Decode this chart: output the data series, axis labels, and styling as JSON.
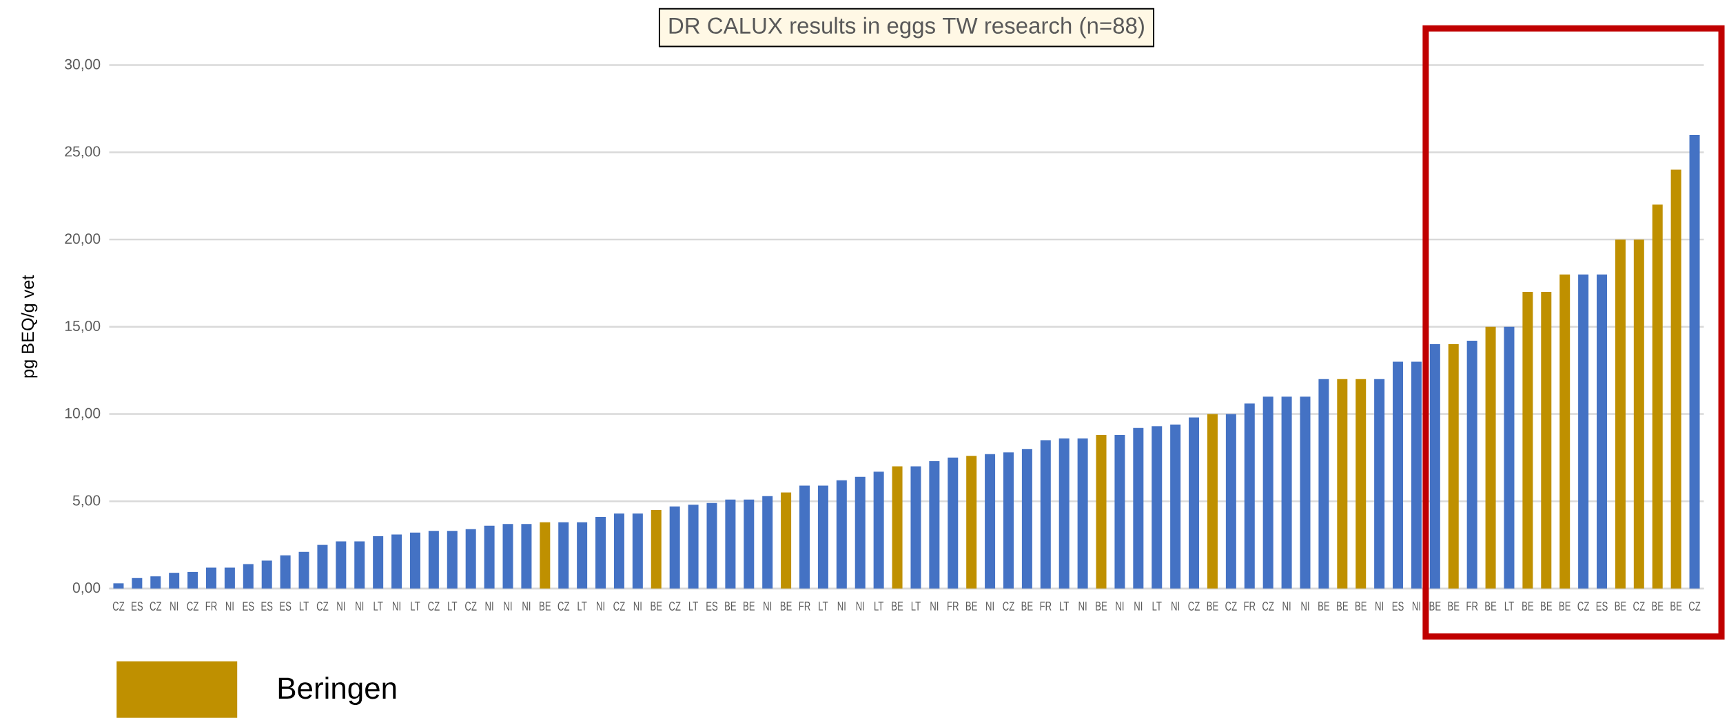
{
  "chart_data": {
    "type": "bar",
    "title": "DR CALUX results in eggs TW research (n=88)",
    "ylabel": "pg BEQ/g vet",
    "categories": [
      "CZ",
      "ES",
      "CZ",
      "NI",
      "CZ",
      "FR",
      "NI",
      "ES",
      "ES",
      "ES",
      "LT",
      "CZ",
      "NI",
      "NI",
      "LT",
      "NI",
      "LT",
      "CZ",
      "LT",
      "CZ",
      "NI",
      "NI",
      "NI",
      "BE",
      "CZ",
      "LT",
      "NI",
      "CZ",
      "NI",
      "BE",
      "CZ",
      "LT",
      "ES",
      "BE",
      "BE",
      "NI",
      "BE",
      "FR",
      "LT",
      "NI",
      "NI",
      "LT",
      "BE",
      "LT",
      "NI",
      "FR",
      "BE",
      "NI",
      "CZ",
      "BE",
      "FR",
      "LT",
      "NI",
      "BE",
      "NI",
      "NI",
      "LT",
      "NI",
      "CZ",
      "BE",
      "CZ",
      "FR",
      "CZ",
      "NI",
      "NI",
      "BE",
      "BE",
      "BE",
      "NI",
      "ES",
      "NI",
      "BE",
      "BE",
      "FR",
      "BE",
      "LT",
      "BE",
      "BE",
      "BE",
      "CZ",
      "ES",
      "BE",
      "CZ",
      "BE",
      "BE",
      "CZ"
    ],
    "series": [
      {
        "color": "#4472c4",
        "values": [
          0.3,
          0.6,
          0.7,
          0.9,
          0.95,
          1.2,
          1.2,
          1.4,
          1.6,
          1.9,
          2.1,
          2.5,
          2.7,
          2.7,
          3.0,
          3.1,
          3.2,
          3.3,
          3.3,
          3.4,
          3.6,
          3.7,
          3.7,
          null,
          3.8,
          3.8,
          4.1,
          4.3,
          4.3,
          null,
          4.7,
          4.8,
          4.9,
          5.1,
          5.1,
          5.3,
          null,
          5.9,
          5.9,
          6.2,
          6.4,
          6.7,
          null,
          7.0,
          7.3,
          7.5,
          null,
          7.7,
          7.8,
          8.0,
          8.5,
          8.6,
          8.6,
          null,
          8.8,
          9.2,
          9.3,
          9.4,
          9.8,
          null,
          10,
          10.6,
          11,
          11,
          11,
          12,
          null,
          null,
          12,
          13,
          13,
          14,
          null,
          14.2,
          null,
          15,
          null,
          null,
          null,
          18,
          18,
          null,
          null,
          null,
          null,
          26
        ]
      },
      {
        "name": "Beringen",
        "color": "#bf9000",
        "values": [
          null,
          null,
          null,
          null,
          null,
          null,
          null,
          null,
          null,
          null,
          null,
          null,
          null,
          null,
          null,
          null,
          null,
          null,
          null,
          null,
          null,
          null,
          null,
          3.8,
          null,
          null,
          null,
          null,
          null,
          4.5,
          null,
          null,
          null,
          null,
          null,
          null,
          5.5,
          null,
          null,
          null,
          null,
          null,
          7.0,
          null,
          null,
          null,
          7.6,
          null,
          null,
          null,
          null,
          null,
          null,
          8.8,
          null,
          null,
          null,
          null,
          null,
          10,
          null,
          null,
          null,
          null,
          null,
          null,
          12,
          12,
          null,
          null,
          null,
          null,
          14,
          null,
          15,
          null,
          17,
          17,
          18,
          null,
          null,
          20,
          20,
          22,
          24,
          null
        ]
      }
    ],
    "ylim": [
      0,
      30
    ],
    "yticks": [
      {
        "value": 0,
        "label": "0,00"
      },
      {
        "value": 5,
        "label": "5,00"
      },
      {
        "value": 10,
        "label": "10,00"
      },
      {
        "value": 15,
        "label": "15,00"
      },
      {
        "value": 20,
        "label": "20,00"
      },
      {
        "value": 25,
        "label": "25,00"
      },
      {
        "value": 30,
        "label": "30,00"
      }
    ],
    "grid": "y",
    "legend": "bottom left"
  }
}
